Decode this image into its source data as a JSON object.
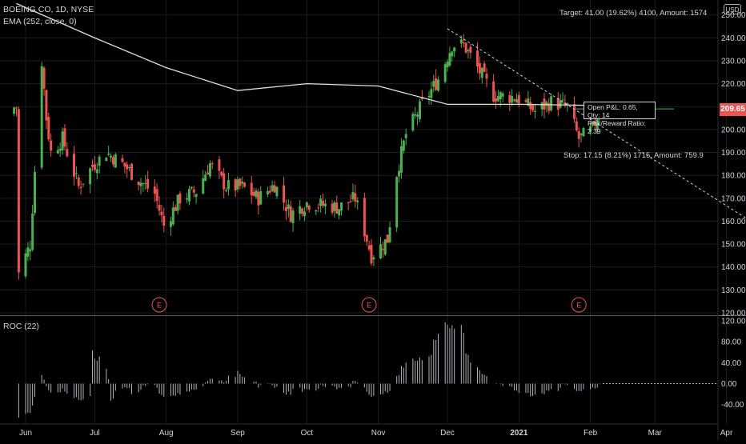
{
  "legend": {
    "symbol": "BOEING CO, 1D, NYSE",
    "indicator": "EMA (252, close, 0)",
    "roc": "ROC (22)"
  },
  "currency": "USD",
  "last_price": "209.65",
  "position": {
    "target_text": "Target: 41.00 (19.62%) 4100, Amount: 1574",
    "stop_text": "Stop: 17.15 (8.21%) 1715, Amount: 759.9",
    "open_pl": "Open P&L: 0.65, Qty: 14",
    "rr_ratio": "Risk/Reward Ratio: 2.39"
  },
  "earnings_marker": "E",
  "colors": {
    "up": "#26a69a",
    "down": "#ef5350",
    "up_fill": "#4caf50",
    "ema": "#e0e0e0",
    "background": "#000000",
    "grid": "#1c1c1c"
  },
  "chart_data": [
    {
      "type": "candlestick",
      "title": "BOEING CO, 1D, NYSE",
      "ylim": [
        125,
        255
      ],
      "y_ticks": [
        "120.00",
        "130.00",
        "140.00",
        "150.00",
        "160.00",
        "170.00",
        "180.00",
        "190.00",
        "200.00",
        "210.00",
        "220.00",
        "230.00",
        "240.00",
        "250.00"
      ],
      "x_ticks": [
        "Jun",
        "Jul",
        "Aug",
        "Sep",
        "Oct",
        "Nov",
        "Dec",
        "2021",
        "Feb",
        "Mar",
        "Apr"
      ],
      "earnings_dates": [
        "Jul 29",
        "Oct 28",
        "Jan 27"
      ],
      "close_path": [
        {
          "date": "2020-05-29",
          "close": 137
        },
        {
          "date": "2020-06-03",
          "close": 150
        },
        {
          "date": "2020-06-08",
          "close": 230
        },
        {
          "date": "2020-06-10",
          "close": 205
        },
        {
          "date": "2020-06-12",
          "close": 190
        },
        {
          "date": "2020-06-17",
          "close": 196
        },
        {
          "date": "2020-06-24",
          "close": 175
        },
        {
          "date": "2020-06-30",
          "close": 184
        },
        {
          "date": "2020-07-06",
          "close": 190
        },
        {
          "date": "2020-07-13",
          "close": 185
        },
        {
          "date": "2020-07-20",
          "close": 178
        },
        {
          "date": "2020-07-27",
          "close": 172
        },
        {
          "date": "2020-07-31",
          "close": 158
        },
        {
          "date": "2020-08-07",
          "close": 170
        },
        {
          "date": "2020-08-14",
          "close": 173
        },
        {
          "date": "2020-08-20",
          "close": 185
        },
        {
          "date": "2020-08-27",
          "close": 175
        },
        {
          "date": "2020-09-03",
          "close": 175
        },
        {
          "date": "2020-09-10",
          "close": 170
        },
        {
          "date": "2020-09-17",
          "close": 176
        },
        {
          "date": "2020-09-24",
          "close": 163
        },
        {
          "date": "2020-10-01",
          "close": 168
        },
        {
          "date": "2020-10-08",
          "close": 167
        },
        {
          "date": "2020-10-15",
          "close": 166
        },
        {
          "date": "2020-10-22",
          "close": 170
        },
        {
          "date": "2020-10-29",
          "close": 145
        },
        {
          "date": "2020-11-05",
          "close": 152
        },
        {
          "date": "2020-11-09",
          "close": 181
        },
        {
          "date": "2020-11-13",
          "close": 198
        },
        {
          "date": "2020-11-20",
          "close": 211
        },
        {
          "date": "2020-11-27",
          "close": 222
        },
        {
          "date": "2020-12-03",
          "close": 237
        },
        {
          "date": "2020-12-08",
          "close": 237
        },
        {
          "date": "2020-12-14",
          "close": 227
        },
        {
          "date": "2020-12-21",
          "close": 215
        },
        {
          "date": "2020-12-31",
          "close": 214
        },
        {
          "date": "2021-01-08",
          "close": 208
        },
        {
          "date": "2021-01-15",
          "close": 212
        },
        {
          "date": "2021-01-22",
          "close": 210
        },
        {
          "date": "2021-01-27",
          "close": 196
        },
        {
          "date": "2021-02-02",
          "close": 200
        },
        {
          "date": "2021-02-05",
          "close": 209.65
        }
      ],
      "ema_252": [
        {
          "date": "2020-05-28",
          "value": 255
        },
        {
          "date": "2020-07-01",
          "value": 240
        },
        {
          "date": "2020-08-01",
          "value": 227
        },
        {
          "date": "2020-09-01",
          "value": 217
        },
        {
          "date": "2020-10-01",
          "value": 220
        },
        {
          "date": "2020-11-01",
          "value": 219
        },
        {
          "date": "2020-12-01",
          "value": 211
        },
        {
          "date": "2021-01-01",
          "value": 211
        },
        {
          "date": "2021-02-06",
          "value": 210.5
        }
      ],
      "trendline": [
        {
          "date": "2020-12-01",
          "value": 244
        },
        {
          "date": "2021-04-10",
          "value": 161
        }
      ]
    },
    {
      "type": "bar",
      "title": "ROC (22)",
      "ylim": [
        -70,
        125
      ],
      "y_ticks": [
        "120.00",
        "80.00",
        "40.00",
        "0.00",
        "-40.00"
      ]
    }
  ]
}
